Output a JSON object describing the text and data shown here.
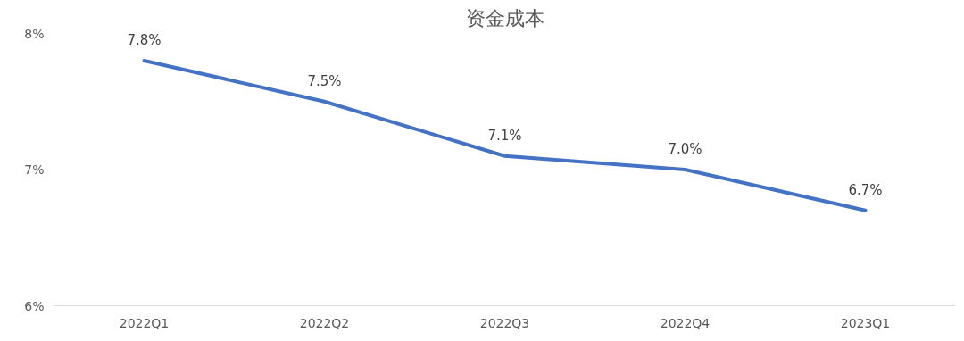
{
  "chart_data": {
    "type": "line",
    "title": "资金成本",
    "categories": [
      "2022Q1",
      "2022Q2",
      "2022Q3",
      "2022Q4",
      "2023Q1"
    ],
    "series": [
      {
        "color": "#4472c4",
        "values": [
          7.8,
          7.5,
          7.1,
          7.0,
          6.7
        ],
        "value_labels": [
          "7.8%",
          "7.5%",
          "7.1%",
          "7.0%",
          "6.7%"
        ]
      }
    ],
    "ylim": [
      6,
      8
    ],
    "yticks": [
      {
        "value": 6,
        "label": "6%"
      },
      {
        "value": 7,
        "label": "7%"
      },
      {
        "value": 8,
        "label": "8%"
      }
    ],
    "grid": false,
    "marker": "none",
    "line_style": "solid"
  }
}
